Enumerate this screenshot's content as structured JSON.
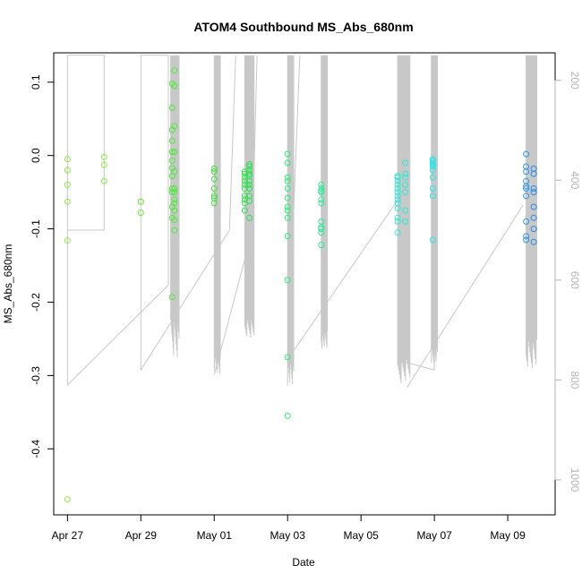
{
  "chart_data": {
    "type": "scatter",
    "title": "ATOM4 Southbound MS_Abs_680nm",
    "xlabel": "Date",
    "ylabel": "MS_Abs_680nm",
    "xlim": [
      "2023-04-26T15:00",
      "2023-05-10T07:00"
    ],
    "ylim": [
      -0.49,
      0.14
    ],
    "x_ticks": [
      {
        "date": "2023-04-27",
        "label": "Apr 27"
      },
      {
        "date": "2023-04-29",
        "label": "Apr 29"
      },
      {
        "date": "2023-05-01",
        "label": "May 01"
      },
      {
        "date": "2023-05-03",
        "label": "May 03"
      },
      {
        "date": "2023-05-05",
        "label": "May 05"
      },
      {
        "date": "2023-05-07",
        "label": "May 07"
      },
      {
        "date": "2023-05-09",
        "label": "May 09"
      }
    ],
    "y_ticks": [
      0.1,
      0.0,
      -0.1,
      -0.2,
      -0.3,
      -0.4
    ],
    "y_tick_labels": [
      "0.1",
      "0.0",
      "-0.1",
      "-0.2",
      "-0.3",
      "-0.4"
    ],
    "secondary_axis": {
      "side": "right",
      "color": "#b4b4b4",
      "range": [
        145,
        1070
      ],
      "inverted": true,
      "ticks": [
        200,
        400,
        600,
        800,
        1000
      ],
      "tick_labels": [
        "200",
        "400",
        "600",
        "800",
        "1000"
      ]
    },
    "grid": false,
    "legend": "none",
    "point_groups": [
      {
        "x": "2023-04-27T00:00",
        "color": "#86ee3a",
        "y": [
          -0.005,
          -0.02,
          -0.04,
          -0.063,
          -0.116,
          -0.469
        ]
      },
      {
        "x": "2023-04-28T00:00",
        "color": "#82ee3a",
        "y": [
          -0.002,
          -0.013,
          -0.035
        ]
      },
      {
        "x": "2023-04-29T00:00",
        "color": "#6ee83a",
        "y": [
          -0.063,
          -0.063,
          -0.078
        ]
      },
      {
        "x": "2023-04-29T20:30",
        "color": "#4ee83a",
        "y": [
          0.098,
          0.065,
          0.035,
          0.02,
          0.005,
          -0.007,
          -0.017,
          -0.028,
          -0.045,
          -0.05,
          -0.07,
          -0.085,
          -0.193
        ]
      },
      {
        "x": "2023-04-29T22:00",
        "color": "#4ee83a",
        "y": [
          0.116,
          0.095,
          0.04,
          0.005,
          -0.022,
          -0.045,
          -0.05,
          -0.06,
          -0.065,
          -0.075,
          -0.088,
          -0.102
        ]
      },
      {
        "x": "2023-05-01T00:00",
        "color": "#40e03a",
        "y": [
          -0.018,
          -0.022,
          -0.032,
          -0.045,
          -0.055,
          -0.058,
          -0.065
        ]
      },
      {
        "x": "2023-05-01T20:00",
        "color": "#2ee04a",
        "y": [
          -0.022,
          -0.025,
          -0.03,
          -0.035,
          -0.04,
          -0.045,
          -0.055,
          -0.06,
          -0.065,
          -0.075
        ]
      },
      {
        "x": "2023-05-01T23:00",
        "color": "#28e050",
        "y": [
          -0.012,
          -0.015,
          -0.02,
          -0.025,
          -0.028,
          -0.035,
          -0.04,
          -0.045,
          -0.055,
          -0.062,
          -0.085
        ]
      },
      {
        "x": "2023-05-03T00:00",
        "color": "#30ea78",
        "y": [
          0.002,
          -0.01,
          -0.03,
          -0.035,
          -0.045,
          -0.058,
          -0.07,
          -0.075,
          -0.085,
          -0.11,
          -0.17,
          -0.275,
          -0.355
        ]
      },
      {
        "x": "2023-05-03T22:00",
        "color": "#30e896",
        "y": [
          -0.04,
          -0.045,
          -0.048,
          -0.05,
          -0.06,
          -0.065,
          -0.09,
          -0.098,
          -0.1,
          -0.105,
          -0.122
        ]
      },
      {
        "x": "2023-05-06T00:00",
        "color": "#2ee8d4",
        "y": [
          -0.028,
          -0.03,
          -0.035,
          -0.04,
          -0.045,
          -0.05,
          -0.055,
          -0.06,
          -0.065,
          -0.072,
          -0.085,
          -0.09,
          -0.105
        ]
      },
      {
        "x": "2023-05-06T05:00",
        "color": "#2ee8d4",
        "y": [
          -0.01,
          -0.025,
          -0.03,
          -0.04,
          -0.05,
          -0.075,
          -0.09
        ]
      },
      {
        "x": "2023-05-06T23:00",
        "color": "#22e6e6",
        "y": [
          -0.005,
          -0.007,
          -0.01,
          -0.012,
          -0.015,
          -0.02,
          -0.03,
          -0.045,
          -0.055,
          -0.115
        ]
      },
      {
        "x": "2023-05-09T12:00",
        "color": "#2a96e8",
        "y": [
          0.002,
          -0.015,
          -0.022,
          -0.035,
          -0.042,
          -0.045,
          -0.055,
          -0.09,
          -0.11,
          -0.115
        ]
      },
      {
        "x": "2023-05-09T17:00",
        "color": "#2a88e8",
        "y": [
          -0.018,
          -0.025,
          -0.045,
          -0.05,
          -0.07,
          -0.085,
          -0.1,
          -0.118
        ]
      }
    ],
    "depth_trace": {
      "color": "#c8c8c8",
      "description_axis": "secondary",
      "points": [
        [
          "2023-04-27T00:00",
          150
        ],
        [
          "2023-04-27T00:00",
          500
        ],
        [
          "2023-04-28T00:00",
          500
        ],
        [
          "2023-04-28T00:00",
          150
        ],
        [
          "2023-04-27T00:00",
          150
        ],
        [
          "2023-04-27T00:00",
          810
        ],
        [
          "2023-04-29T18:00",
          610
        ],
        [
          "2023-04-29T18:00",
          150
        ],
        [
          "2023-04-29T00:00",
          150
        ],
        [
          "2023-04-29T00:00",
          780
        ],
        [
          "2023-05-01T10:00",
          500
        ],
        [
          "2023-05-01T14:00",
          150
        ]
      ],
      "profile_bursts": [
        {
          "x_start": "2023-04-29T19:30",
          "x_end": "2023-04-30T01:00",
          "bottom": [
            680,
            760
          ]
        },
        {
          "x_start": "2023-05-01T00:00",
          "x_end": "2023-05-01T04:00",
          "bottom": [
            750,
            790
          ]
        },
        {
          "x_start": "2023-05-01T20:00",
          "x_end": "2023-05-02T02:00",
          "bottom": [
            680,
            720
          ]
        },
        {
          "x_start": "2023-05-03T00:00",
          "x_end": "2023-05-03T04:00",
          "bottom": [
            760,
            815
          ]
        },
        {
          "x_start": "2023-05-03T22:00",
          "x_end": "2023-05-04T02:00",
          "bottom": [
            700,
            740
          ]
        },
        {
          "x_start": "2023-05-06T00:00",
          "x_end": "2023-05-06T08:00",
          "bottom": [
            760,
            810
          ]
        },
        {
          "x_start": "2023-05-06T22:00",
          "x_end": "2023-05-07T02:00",
          "bottom": [
            730,
            770
          ]
        },
        {
          "x_start": "2023-05-09T12:00",
          "x_end": "2023-05-09T19:00",
          "bottom": [
            720,
            780
          ]
        }
      ],
      "connectors": [
        [
          [
            "2023-05-01T00:00",
            790
          ],
          [
            "2023-05-02T01:00",
            500
          ],
          [
            "2023-05-02T04:00",
            150
          ]
        ],
        [
          [
            "2023-05-03T00:00",
            760
          ],
          [
            "2023-05-03T08:00",
            150
          ]
        ],
        [
          [
            "2023-05-03T02:00",
            750
          ],
          [
            "2023-05-06T00:00",
            440
          ]
        ],
        [
          [
            "2023-05-06T06:00",
            815
          ],
          [
            "2023-05-09T10:00",
            450
          ]
        ],
        [
          [
            "2023-05-06T00:00",
            760
          ],
          [
            "2023-05-07T00:00",
            780
          ],
          [
            "2023-05-07T00:00",
            150
          ]
        ]
      ]
    }
  }
}
